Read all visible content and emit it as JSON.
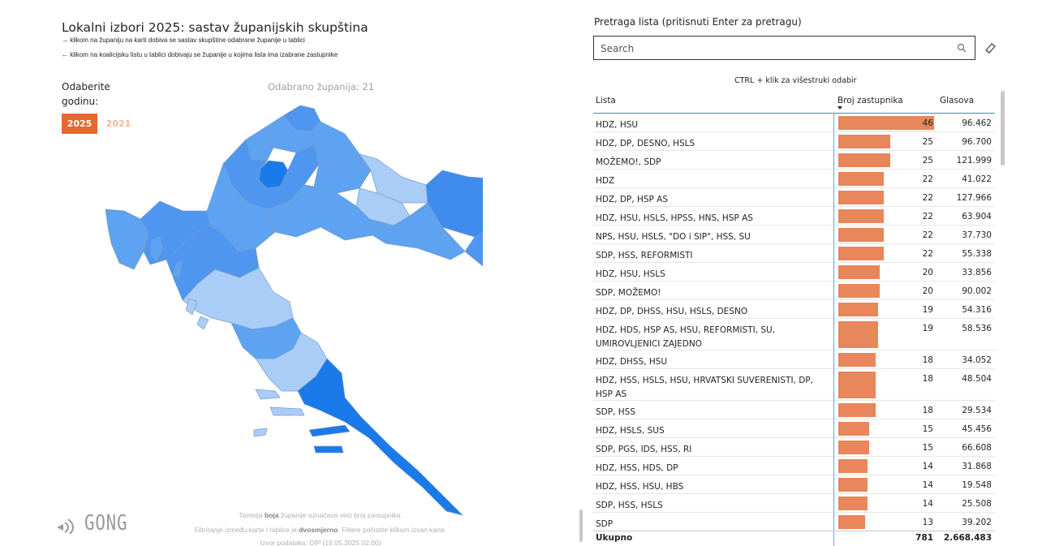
{
  "header": {
    "title": "Lokalni izbori 2025: sastav županijskih skupština",
    "instruction_1": "→ klikom na županiju na karti dobiva se sastav skupštine odabrane županije u tablici",
    "instruction_2": "← klikom na koalicijsku listu u tablici dobivaju se županije u kojima lista ima izabrane zastupnike"
  },
  "year_filter": {
    "label": "Odaberite godinu:",
    "options": [
      {
        "label": "2025",
        "selected": true
      },
      {
        "label": "2021",
        "selected": false
      }
    ]
  },
  "map": {
    "selected_label": "Odabrano županija: 21",
    "legend_note": "Tamnija boja županije označava veći broj zastupnika."
  },
  "footer": {
    "line2_a": "Filtriranje između karte i tablice je ",
    "line2_b": "dvosmjerno",
    "line2_c": ". Filtere počistite klikom izvan karte.",
    "line1_a": "Tamnija ",
    "line1_b": "boja",
    "line1_c": " županije označava veći broj zastupnika.",
    "source": "Izvor podataka: DIP (19.05.2025 02:00)"
  },
  "logo": {
    "text": "GONG"
  },
  "search": {
    "label": "Pretraga lista (pritisnuti Enter za pretragu)",
    "placeholder": "Search"
  },
  "table": {
    "hint": "CTRL + klik za višestruki odabir",
    "col_lista": "Lista",
    "col_broj": "Broj zastupnika",
    "col_glasova": "Glasova",
    "max_seats": 46,
    "rows": [
      {
        "name": "HDZ, HSU",
        "seats": "46",
        "votes": "96.462",
        "v": 46
      },
      {
        "name": "HDZ, DP, DESNO, HSLS",
        "seats": "25",
        "votes": "96.700",
        "v": 25
      },
      {
        "name": "MOŽEMO!, SDP",
        "seats": "25",
        "votes": "121.999",
        "v": 25
      },
      {
        "name": "HDZ",
        "seats": "22",
        "votes": "41.022",
        "v": 22
      },
      {
        "name": "HDZ, DP, HSP AS",
        "seats": "22",
        "votes": "127.966",
        "v": 22
      },
      {
        "name": "HDZ, HSU, HSLS, HPSS, HNS, HSP AS",
        "seats": "22",
        "votes": "63.904",
        "v": 22
      },
      {
        "name": "NPS, HSU, HSLS, \"DO i SIP\", HSS, SU",
        "seats": "22",
        "votes": "37.730",
        "v": 22
      },
      {
        "name": "SDP, HSS, REFORMISTI",
        "seats": "22",
        "votes": "55.338",
        "v": 22
      },
      {
        "name": "HDZ, HSU, HSLS",
        "seats": "20",
        "votes": "33.856",
        "v": 20
      },
      {
        "name": "SDP, MOŽEMO!",
        "seats": "20",
        "votes": "90.002",
        "v": 20
      },
      {
        "name": "HDZ, DP, DHSS, HSU, HSLS, DESNO",
        "seats": "19",
        "votes": "54.316",
        "v": 19
      },
      {
        "name": "HDZ, HDS, HSP AS, HSU, REFORMISTI, SU, UMIROVLJENICI ZAJEDNO",
        "seats": "19",
        "votes": "58.536",
        "v": 19
      },
      {
        "name": "HDZ, DHSS, HSU",
        "seats": "18",
        "votes": "34.052",
        "v": 18
      },
      {
        "name": "HDZ, HSS, HSLS, HSU, HRVATSKI SUVERENISTI, DP, HSP AS",
        "seats": "18",
        "votes": "48.504",
        "v": 18
      },
      {
        "name": "SDP, HSS",
        "seats": "18",
        "votes": "29.534",
        "v": 18
      },
      {
        "name": "HDZ, HSLS, SUS",
        "seats": "15",
        "votes": "45.456",
        "v": 15
      },
      {
        "name": "SDP, PGS, IDS, HSS, RI",
        "seats": "15",
        "votes": "66.608",
        "v": 15
      },
      {
        "name": "HDZ, HSS, HDS, DP",
        "seats": "14",
        "votes": "31.868",
        "v": 14
      },
      {
        "name": "HDZ, HSS, HSU, HBS",
        "seats": "14",
        "votes": "19.548",
        "v": 14
      },
      {
        "name": "SDP, HSS, HSLS",
        "seats": "14",
        "votes": "25.508",
        "v": 14
      },
      {
        "name": "SDP",
        "seats": "13",
        "votes": "39.202",
        "v": 13
      }
    ],
    "total": {
      "label": "Ukupno",
      "seats": "781",
      "votes": "2.668.483"
    }
  },
  "colors": {
    "accent_orange": "#e8662f",
    "bar": "#e8865c",
    "map_light": "#a9cdf7",
    "map_mid": "#5da3f2",
    "map_dark": "#1a7aea",
    "header_line": "#2b8fd6"
  }
}
